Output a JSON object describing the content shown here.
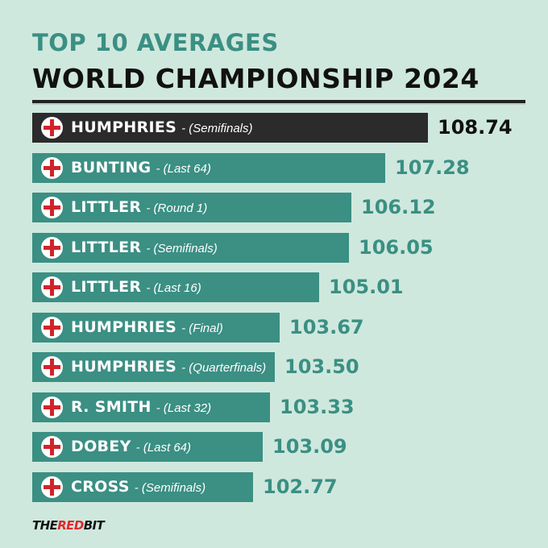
{
  "header": {
    "title_line1": "TOP 10 AVERAGES",
    "title_line2": "WORLD CHAMPIONSHIP 2024"
  },
  "colors": {
    "background": "#cfe8de",
    "bar": "#3b8f83",
    "top_bar": "#2b2b2b",
    "title_accent": "#3b8f83",
    "flag_red": "#d2232a",
    "brand_red": "#e0282e"
  },
  "chart_data": {
    "type": "bar",
    "orientation": "horizontal",
    "title": "TOP 10 AVERAGES",
    "subtitle": "WORLD CHAMPIONSHIP 2024",
    "legend": "none",
    "grid": false,
    "highlight_index": 0,
    "categories": [
      {
        "name": "HUMPHRIES",
        "round": "- (Semifinals)"
      },
      {
        "name": "BUNTING",
        "round": "- (Last 64)"
      },
      {
        "name": "LITTLER",
        "round": "- (Round 1)"
      },
      {
        "name": "LITTLER",
        "round": "- (Semifinals)"
      },
      {
        "name": "LITTLER",
        "round": "- (Last 16)"
      },
      {
        "name": "HUMPHRIES",
        "round": "- (Final)"
      },
      {
        "name": "HUMPHRIES",
        "round": "- (Quarterfinals)"
      },
      {
        "name": "R. SMITH",
        "round": "- (Last 32)"
      },
      {
        "name": "DOBEY",
        "round": "- (Last 64)"
      },
      {
        "name": "CROSS",
        "round": "- (Semifinals)"
      }
    ],
    "values": [
      108.74,
      107.28,
      106.12,
      106.05,
      105.01,
      103.67,
      103.5,
      103.33,
      103.09,
      102.77
    ],
    "value_labels": [
      "108.74",
      "107.28",
      "106.12",
      "106.05",
      "105.01",
      "103.67",
      "103.50",
      "103.33",
      "103.09",
      "102.77"
    ],
    "flag_icon": "england-flag-icon"
  },
  "brand": {
    "part1": "THE",
    "part2": "RED",
    "part3": "BIT"
  }
}
